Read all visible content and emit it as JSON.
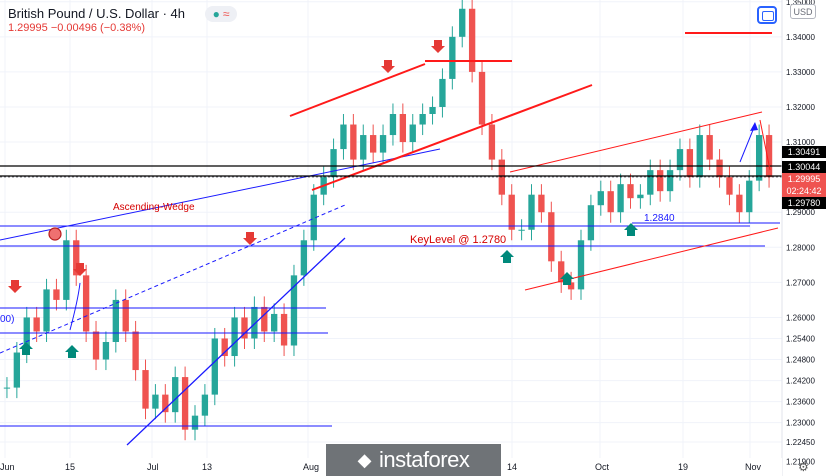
{
  "header": {
    "title": "British Pound / U.S. Dollar · 4h",
    "quote": "1.29995 −0.00496 (−0.38%)",
    "currency_button": "USD"
  },
  "watermark": {
    "brand": "instaforex",
    "icon": "instaforex-logo-icon"
  },
  "price_tags": {
    "current": "1.29995",
    "countdown": "02:24:42",
    "level_a": "1.30491",
    "level_b": "1.30044",
    "level_c": "1.29780"
  },
  "annotations": {
    "ascending_wedge": "Ascending-Wedge",
    "key_level": "KeyLevel @ 1.2780",
    "support_level": "1.2840",
    "left_cut_label": "00)"
  },
  "colors": {
    "up": "#26a69a",
    "down": "#ef5350",
    "trend_red": "#ff1a1a",
    "trend_blue": "#1a1aff",
    "bg": "#ffffff",
    "current_price": "#000000"
  },
  "chart_data": {
    "type": "candlestick",
    "title": "British Pound / U.S. Dollar · 4h",
    "y_range": [
      1.2205,
      1.3505
    ],
    "y_ticks": [
      1.35,
      1.34,
      1.33,
      1.32,
      1.31,
      1.3,
      1.29,
      1.28,
      1.27,
      1.26,
      1.254,
      1.248,
      1.242,
      1.236,
      1.23,
      1.2245,
      1.219
    ],
    "y_tick_labels": [
      "1.35000",
      "1.34000",
      "1.33000",
      "1.32000",
      "1.31000",
      "1.30000",
      "1.29000",
      "1.28000",
      "1.27000",
      "1.26000",
      "1.25400",
      "1.24800",
      "1.24200",
      "1.23600",
      "1.23000",
      "1.22450",
      "1.21900"
    ],
    "x_tick_labels": [
      "Jun",
      "15",
      "Jul",
      "13",
      "Aug",
      "14",
      "Oct",
      "19",
      "Nov"
    ],
    "closes": [
      1.24,
      1.25,
      1.26,
      1.256,
      1.268,
      1.265,
      1.282,
      1.272,
      1.256,
      1.248,
      1.253,
      1.265,
      1.256,
      1.245,
      1.234,
      1.238,
      1.233,
      1.243,
      1.228,
      1.232,
      1.238,
      1.254,
      1.249,
      1.26,
      1.254,
      1.263,
      1.256,
      1.261,
      1.252,
      1.272,
      1.282,
      1.295,
      1.3,
      1.308,
      1.315,
      1.305,
      1.312,
      1.307,
      1.312,
      1.318,
      1.31,
      1.315,
      1.318,
      1.32,
      1.328,
      1.34,
      1.348,
      1.33,
      1.315,
      1.305,
      1.295,
      1.285,
      1.285,
      1.295,
      1.29,
      1.276,
      1.27,
      1.268,
      1.282,
      1.292,
      1.296,
      1.29,
      1.298,
      1.294,
      1.295,
      1.302,
      1.296,
      1.302,
      1.308,
      1.3,
      1.312,
      1.305,
      1.3,
      1.295,
      1.29,
      1.299,
      1.312,
      1.3
    ]
  }
}
